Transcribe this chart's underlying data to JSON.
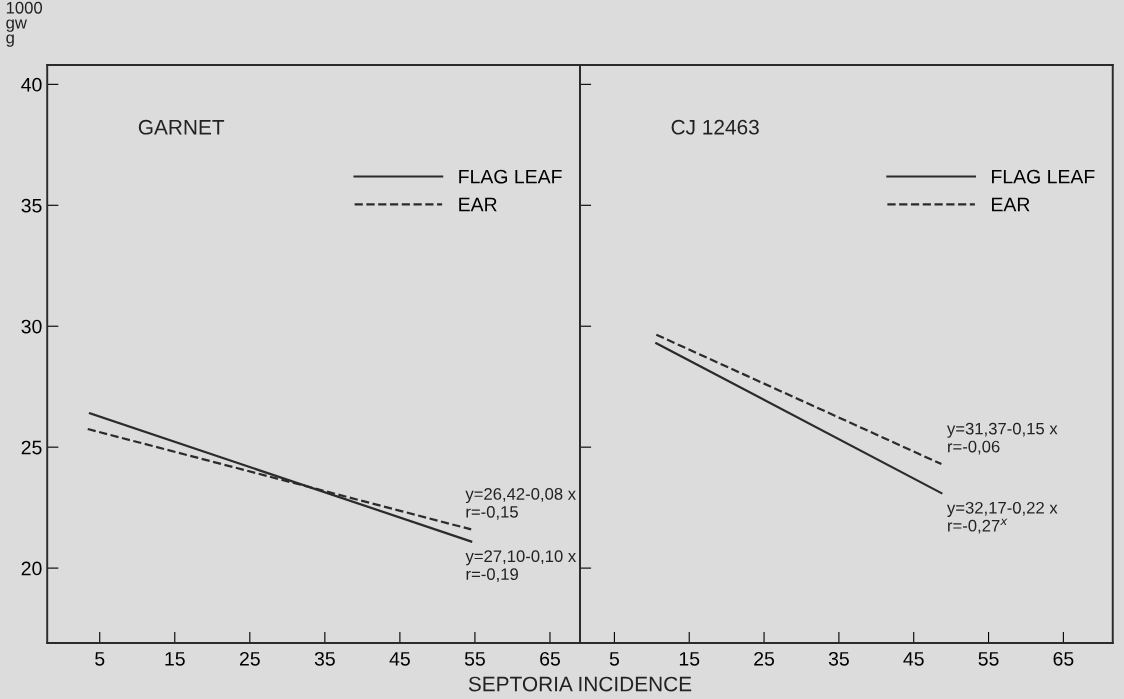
{
  "chart_data": [
    {
      "type": "line",
      "title": "GARNET",
      "xlabel": "SEPTORIA INCIDENCE",
      "ylabel": "1000\ngw\ng",
      "xlim": [
        -2,
        69
      ],
      "xticks": [
        5,
        15,
        25,
        35,
        45,
        55,
        65
      ],
      "ylim": [
        16.9,
        40.8
      ],
      "yticks": [
        20,
        25,
        30,
        35,
        40
      ],
      "grid": false,
      "legend": "top right",
      "marker": "none",
      "series": [
        {
          "name": "FLAG LEAF",
          "color": "#2b2b2b",
          "line_style": "solid",
          "x": [
            3.7,
            54.5
          ],
          "values": [
            26.4,
            21.1
          ]
        },
        {
          "name": "EAR",
          "color": "#2b2b2b",
          "line_style": "dashed",
          "x": [
            3.4,
            54.5
          ],
          "values": [
            25.75,
            21.6
          ]
        }
      ],
      "annotations": [
        "y=27,10-0,10 x\nr=-0,19",
        "y=26,42-0,08 x\nr=-0,15"
      ]
    },
    {
      "type": "line",
      "title": "CJ 12463",
      "xlim": [
        0.4,
        71.6
      ],
      "xticks": [
        5,
        15,
        25,
        35,
        45,
        55,
        65
      ],
      "ylim": [
        16.9,
        40.8
      ],
      "yticks": [
        20,
        25,
        30,
        35,
        40
      ],
      "tick_labels": "x",
      "grid": false,
      "legend": "top right",
      "marker": "none",
      "series": [
        {
          "name": "FLAG LEAF",
          "color": "#2b2b2b",
          "line_style": "solid",
          "x": [
            10.6,
            48.7
          ],
          "values": [
            29.3,
            23.1
          ]
        },
        {
          "name": "EAR",
          "color": "#2b2b2b",
          "line_style": "dashed",
          "x": [
            10.6,
            48.7
          ],
          "values": [
            29.65,
            24.3
          ]
        }
      ],
      "annotations": [
        "y=32,17-0,22 x\nr=-0,27$^{x}$",
        "y=31,37-0,15 x\nr=-0,06"
      ]
    }
  ]
}
